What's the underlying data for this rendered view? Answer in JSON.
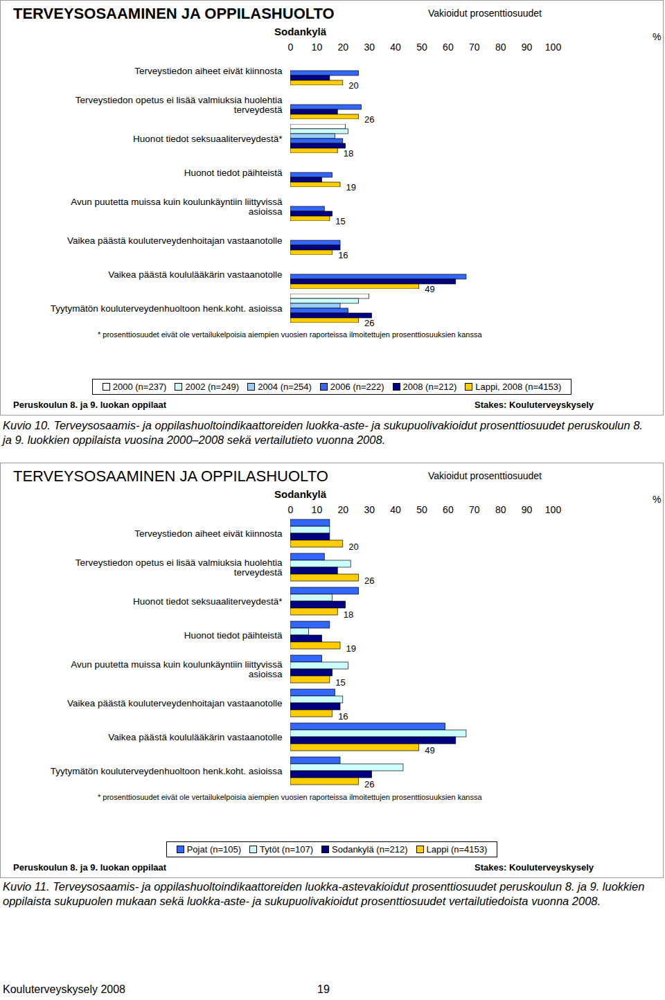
{
  "chart_data": [
    {
      "type": "bar",
      "orientation": "horizontal",
      "title": "TERVEYSOSAAMINEN JA OPPILASHUOLTO",
      "subtitle": "Sodankylä",
      "value_note": "Vakioidut prosenttiosuudet",
      "x_label": "%",
      "xlim": [
        0,
        100
      ],
      "xticks": [
        0,
        10,
        20,
        30,
        40,
        50,
        60,
        70,
        80,
        90,
        100
      ],
      "categories": [
        "Terveystiedon aiheet eivät kiinnosta",
        "Terveystiedon opetus ei lisää valmiuksia huolehtia terveydestä",
        "Huonot tiedot seksuaaliterveydestä*",
        "Huonot tiedot päihteistä",
        "Avun puutetta muissa kuin koulunkäyntiin liittyvissä asioissa",
        "Vaikea päästä kouluterveydenhoitajan vastaanotolle",
        "Vaikea päästä koululääkärin vastaanotolle",
        "Tyytymätön kouluterveydenhuoltoon henk.koht. asioissa"
      ],
      "series": [
        {
          "name": "2000 (n=237)",
          "color": "#ffffff",
          "values": [
            null,
            null,
            21,
            null,
            null,
            null,
            null,
            30
          ]
        },
        {
          "name": "2002 (n=249)",
          "color": "#ccffff",
          "values": [
            null,
            null,
            22,
            null,
            null,
            null,
            null,
            26
          ]
        },
        {
          "name": "2004 (n=254)",
          "color": "#99ccff",
          "values": [
            null,
            null,
            17,
            null,
            null,
            null,
            null,
            19
          ]
        },
        {
          "name": "2006 (n=222)",
          "color": "#3366ff",
          "values": [
            26,
            27,
            20,
            16,
            13,
            19,
            67,
            22
          ]
        },
        {
          "name": "2008 (n=212)",
          "color": "#000080",
          "values": [
            15,
            18,
            21,
            12,
            16,
            19,
            63,
            31
          ]
        },
        {
          "name": "Lappi, 2008 (n=4153)",
          "color": "#ffcc00",
          "data_labels": true,
          "values": [
            20,
            26,
            18,
            19,
            15,
            16,
            49,
            26
          ]
        }
      ],
      "footnote": "* prosenttiosuudet eivät ole vertailukelpoisia aiempien vuosien raporteissa ilmoitettujen prosenttiosuuksien kanssa",
      "population_note": "Peruskoulun 8. ja 9. luokan oppilaat",
      "source": "Stakes: Kouluterveyskysely",
      "caption": "Kuvio 10. Terveysosaamis- ja oppilashuoltoindikaattoreiden luokka-aste- ja sukupuolivakioidut prosenttiosuudet peruskoulun 8. ja 9. luokkien oppilaista vuosina 2000–2008 sekä vertailutieto vuonna 2008."
    },
    {
      "type": "bar",
      "orientation": "horizontal",
      "title": "TERVEYSOSAAMINEN JA OPPILASHUOLTO",
      "subtitle": "Sodankylä",
      "value_note": "Vakioidut prosenttiosuudet",
      "x_label": "%",
      "xlim": [
        0,
        100
      ],
      "xticks": [
        0,
        10,
        20,
        30,
        40,
        50,
        60,
        70,
        80,
        90,
        100
      ],
      "categories": [
        "Terveystiedon aiheet eivät kiinnosta",
        "Terveystiedon opetus ei lisää valmiuksia huolehtia terveydestä",
        "Huonot tiedot seksuaaliterveydestä*",
        "Huonot tiedot päihteistä",
        "Avun puutetta muissa kuin koulunkäyntiin liittyvissä asioissa",
        "Vaikea päästä kouluterveydenhoitajan vastaanotolle",
        "Vaikea päästä koululääkärin vastaanotolle",
        "Tyytymätön kouluterveydenhuoltoon henk.koht. asioissa"
      ],
      "series": [
        {
          "name": "Pojat (n=105)",
          "color": "#3366ff",
          "values": [
            15,
            13,
            26,
            15,
            12,
            17,
            59,
            19
          ]
        },
        {
          "name": "Tytöt (n=107)",
          "color": "#ccffff",
          "values": [
            15,
            23,
            16,
            7,
            22,
            20,
            67,
            43
          ]
        },
        {
          "name": "Sodankylä (n=212)",
          "color": "#000080",
          "values": [
            15,
            18,
            21,
            12,
            16,
            19,
            63,
            31
          ]
        },
        {
          "name": "Lappi (n=4153)",
          "color": "#ffcc00",
          "data_labels": true,
          "values": [
            20,
            26,
            18,
            19,
            15,
            16,
            49,
            26
          ]
        }
      ],
      "footnote": "* prosenttiosuudet eivät ole vertailukelpoisia aiempien vuosien raporteissa ilmoitettujen prosenttiosuuksien kanssa",
      "population_note": "Peruskoulun 8. ja 9. luokan oppilaat",
      "source": "Stakes: Kouluterveyskysely",
      "caption": "Kuvio 11. Terveysosaamis- ja oppilashuoltoindikaattoreiden luokka-astevakioidut prosenttiosuudet peruskoulun 8. ja 9. luokkien oppilaista sukupuolen mukaan sekä luokka-aste- ja sukupuolivakioidut prosenttiosuudet vertailutiedoista vuonna 2008."
    }
  ],
  "page_footer": {
    "text": "Kouluterveyskysely 2008",
    "page_number": 19
  }
}
